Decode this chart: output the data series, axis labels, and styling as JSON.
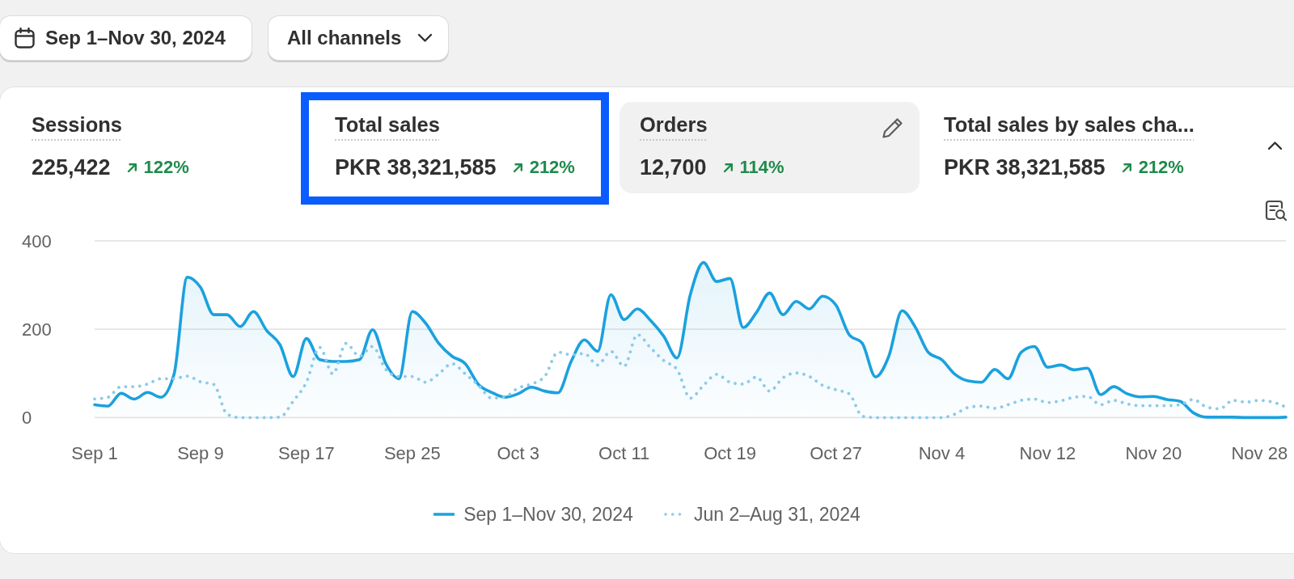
{
  "chart_data": {
    "type": "line",
    "annotations": [
      "Sep 1–Nov 30, 2024",
      "All channels",
      "Sessions",
      "225,422",
      "122%",
      "Total sales",
      "PKR 38,321,585",
      "212%",
      "Orders",
      "12,700",
      "114%",
      "Total sales by sales cha...",
      "PKR 38,321,585",
      "212%"
    ],
    "categories": [
      "Sep 1",
      null,
      null,
      null,
      null,
      null,
      null,
      null,
      "Sep 9",
      null,
      null,
      null,
      null,
      null,
      null,
      null,
      "Sep 17",
      null,
      null,
      null,
      null,
      null,
      null,
      null,
      "Sep 25",
      null,
      null,
      null,
      null,
      null,
      null,
      null,
      "Oct 3",
      null,
      null,
      null,
      null,
      null,
      null,
      null,
      "Oct 11",
      null,
      null,
      null,
      null,
      null,
      null,
      null,
      "Oct 19",
      null,
      null,
      null,
      null,
      null,
      null,
      null,
      "Oct 27",
      null,
      null,
      null,
      null,
      null,
      null,
      null,
      "Nov 4",
      null,
      null,
      null,
      null,
      null,
      null,
      null,
      "Nov 12",
      null,
      null,
      null,
      null,
      null,
      null,
      null,
      "Nov 20",
      null,
      null,
      null,
      null,
      null,
      null,
      null,
      "Nov 28",
      null,
      null
    ],
    "series": [
      {
        "name": "Sep 1–Nov 30, 2024",
        "type": "area",
        "color": "#1ba1de",
        "line_style": "solid",
        "values": [
          29,
          26,
          55,
          42,
          57,
          46,
          98,
          318,
          295,
          233,
          233,
          206,
          240,
          197,
          165,
          93,
          179,
          131,
          127,
          127,
          131,
          199,
          122,
          88,
          240,
          214,
          168,
          139,
          122,
          75,
          57,
          46,
          54,
          69,
          60,
          56,
          127,
          176,
          150,
          278,
          222,
          246,
          220,
          184,
          135,
          278,
          351,
          308,
          315,
          204,
          238,
          282,
          233,
          263,
          246,
          275,
          255,
          188,
          168,
          92,
          139,
          242,
          205,
          147,
          131,
          98,
          83,
          80,
          109,
          88,
          148,
          161,
          114,
          119,
          108,
          112,
          52,
          70,
          54,
          47,
          48,
          41,
          37,
          11,
          1,
          1,
          1,
          0,
          0,
          0,
          1
        ]
      },
      {
        "name": "Jun 2–Aug 31, 2024",
        "type": "line",
        "color": "#8ccbe9",
        "line_style": "dotted",
        "values": [
          42,
          46,
          70,
          70,
          76,
          88,
          88,
          94,
          81,
          75,
          8,
          0,
          0,
          0,
          1,
          37,
          80,
          159,
          99,
          168,
          139,
          161,
          109,
          93,
          93,
          80,
          99,
          122,
          99,
          73,
          44,
          47,
          67,
          76,
          93,
          148,
          142,
          145,
          119,
          150,
          116,
          188,
          158,
          129,
          109,
          44,
          73,
          98,
          80,
          76,
          92,
          60,
          90,
          101,
          93,
          73,
          63,
          54,
          3,
          0,
          0,
          0,
          0,
          0,
          0,
          8,
          23,
          26,
          21,
          29,
          39,
          42,
          34,
          38,
          46,
          48,
          29,
          39,
          31,
          27,
          27,
          27,
          29,
          41,
          24,
          20,
          39,
          35,
          39,
          35,
          24
        ]
      }
    ],
    "ylim": [
      0,
      400
    ],
    "yticks": [
      0,
      200,
      400
    ],
    "grid": "y",
    "legend": "bottom"
  }
}
